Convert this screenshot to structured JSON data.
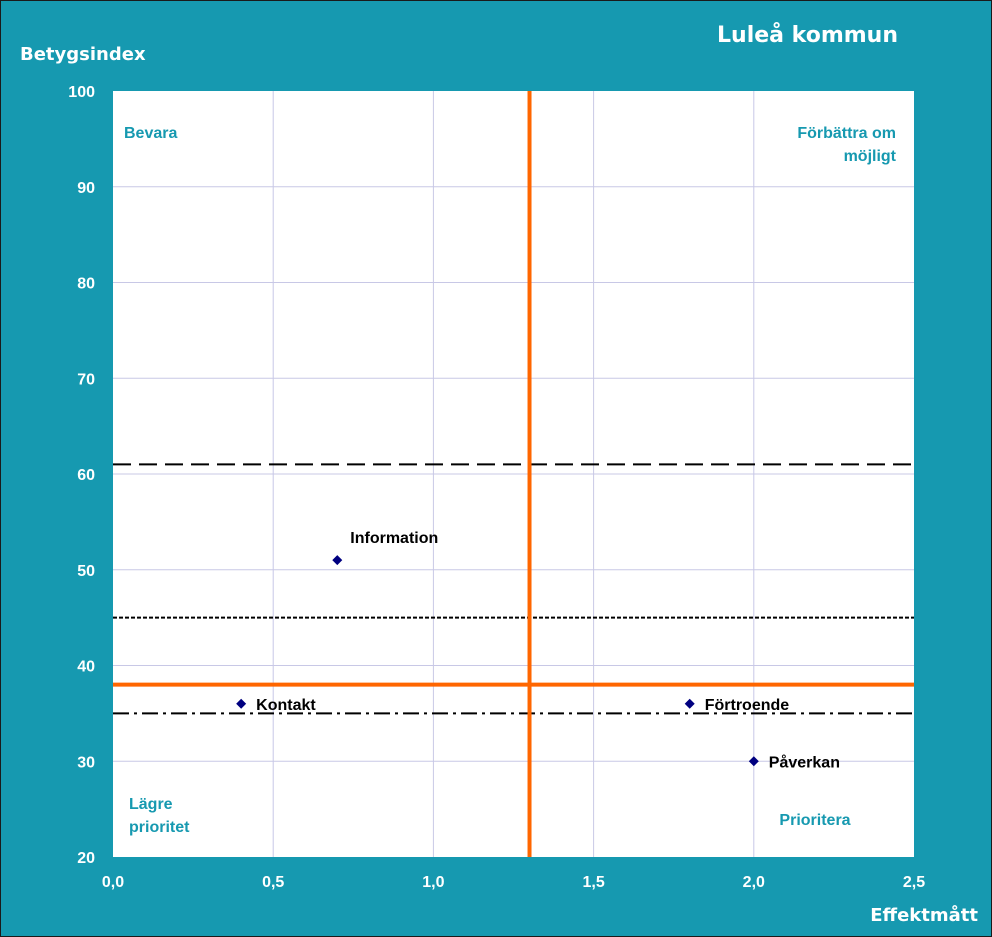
{
  "chart_data": {
    "type": "scatter",
    "title": "Luleå kommun",
    "xlabel": "Effektmått",
    "ylabel": "Betygsindex",
    "xlim": [
      0,
      2.5
    ],
    "ylim": [
      20,
      100
    ],
    "x_ticks": [
      0,
      0.5,
      1.0,
      1.5,
      2.0,
      2.5
    ],
    "x_tick_labels": [
      "0,0",
      "0,5",
      "1,0",
      "1,5",
      "2,0",
      "2,5"
    ],
    "y_ticks": [
      20,
      30,
      40,
      50,
      60,
      70,
      80,
      90,
      100
    ],
    "y_tick_labels": [
      "20",
      "30",
      "40",
      "50",
      "60",
      "70",
      "80",
      "90",
      "100"
    ],
    "grid": true,
    "points": [
      {
        "label": "Information",
        "x": 0.7,
        "y": 51
      },
      {
        "label": "Kontakt",
        "x": 0.4,
        "y": 36
      },
      {
        "label": "Förtroende",
        "x": 1.8,
        "y": 36
      },
      {
        "label": "Påverkan",
        "x": 2.0,
        "y": 30
      }
    ],
    "quadrant_labels": {
      "top_left": [
        "Bevara"
      ],
      "top_right": [
        "Förbättra om",
        "möjligt"
      ],
      "bottom_left": [
        "Lägre",
        "prioritet"
      ],
      "bottom_right": [
        "Prioritera"
      ]
    },
    "divider_lines": {
      "vertical_x": 1.3,
      "horizontal_y": 38,
      "color": "#ff6600"
    },
    "reference_lines": [
      {
        "y": 61,
        "style": "dashed"
      },
      {
        "y": 45,
        "style": "dotted"
      },
      {
        "y": 35,
        "style": "dash-dot"
      }
    ],
    "colors": {
      "background": "#1699b0",
      "plot_area": "#ffffff",
      "grid": "#c8c8e6",
      "marker": "#000080",
      "quadrant_text": "#1699b0",
      "axis_text": "#ffffff"
    }
  }
}
